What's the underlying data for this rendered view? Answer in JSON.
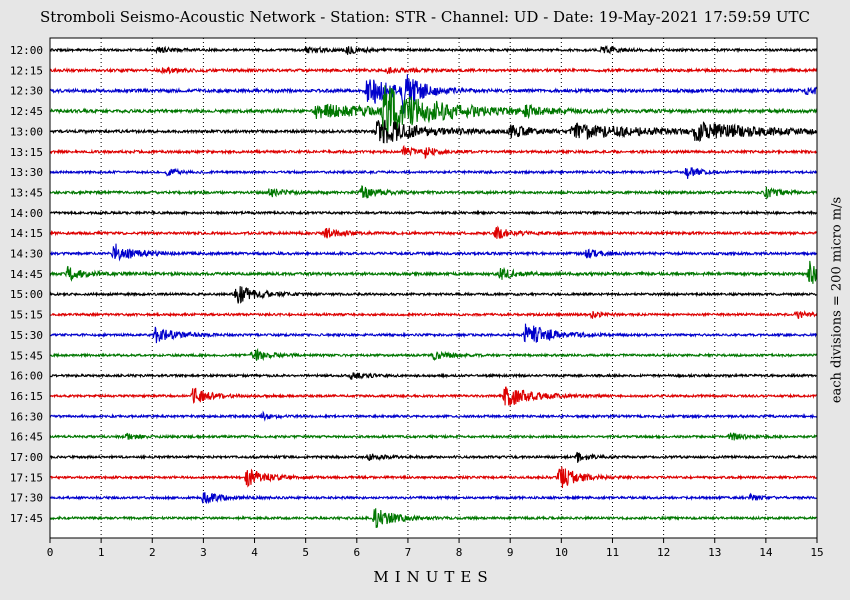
{
  "chart_data": {
    "type": "line",
    "title": "Stromboli Seismo-Acoustic Network - Station: STR - Channel: UD - Date: 19-May-2021 17:59:59 UTC",
    "xlabel": "MINUTES",
    "ylabel": "each divisions = 200 micro m/s",
    "xlim": [
      0,
      15
    ],
    "x_ticks": [
      0,
      1,
      2,
      3,
      4,
      5,
      6,
      7,
      8,
      9,
      10,
      11,
      12,
      13,
      14,
      15
    ],
    "grid": true,
    "colors": [
      "#000000",
      "#dd0000",
      "#0000cc",
      "#007700"
    ],
    "traces": [
      {
        "label": "12:00",
        "noise": 0.1,
        "events": [
          {
            "t": 2.1,
            "a": 0.25,
            "d": 0.3
          },
          {
            "t": 5.0,
            "a": 0.25,
            "d": 0.4
          },
          {
            "t": 5.8,
            "a": 0.35,
            "d": 0.25
          },
          {
            "t": 10.8,
            "a": 0.3,
            "d": 0.3
          }
        ]
      },
      {
        "label": "12:15",
        "noise": 0.12,
        "events": [
          {
            "t": 2.2,
            "a": 0.2,
            "d": 0.4
          },
          {
            "t": 6.6,
            "a": 0.25,
            "d": 0.4
          }
        ]
      },
      {
        "label": "12:30",
        "noise": 0.14,
        "events": [
          {
            "t": 6.2,
            "a": 1.6,
            "d": 0.4
          },
          {
            "t": 6.9,
            "a": 1.8,
            "d": 0.3
          },
          {
            "t": 14.8,
            "a": 0.3,
            "d": 0.5
          }
        ]
      },
      {
        "label": "12:45",
        "noise": 0.14,
        "events": [
          {
            "t": 5.2,
            "a": 0.6,
            "d": 1.5
          },
          {
            "t": 6.5,
            "a": 2.2,
            "d": 0.9
          },
          {
            "t": 9.3,
            "a": 0.4,
            "d": 0.3
          }
        ]
      },
      {
        "label": "13:00",
        "noise": 0.12,
        "events": [
          {
            "t": 6.4,
            "a": 1.2,
            "d": 0.8
          },
          {
            "t": 9.0,
            "a": 0.5,
            "d": 0.4
          },
          {
            "t": 10.2,
            "a": 0.7,
            "d": 1.3
          },
          {
            "t": 12.6,
            "a": 0.75,
            "d": 1.3
          }
        ]
      },
      {
        "label": "13:15",
        "noise": 0.11,
        "events": [
          {
            "t": 6.9,
            "a": 0.45,
            "d": 0.2
          },
          {
            "t": 7.3,
            "a": 0.5,
            "d": 0.2
          }
        ]
      },
      {
        "label": "13:30",
        "noise": 0.1,
        "events": [
          {
            "t": 2.3,
            "a": 0.3,
            "d": 0.2
          },
          {
            "t": 12.45,
            "a": 0.6,
            "d": 0.2
          }
        ]
      },
      {
        "label": "13:45",
        "noise": 0.11,
        "events": [
          {
            "t": 4.3,
            "a": 0.4,
            "d": 0.25
          },
          {
            "t": 6.1,
            "a": 0.6,
            "d": 0.3
          },
          {
            "t": 14.0,
            "a": 0.45,
            "d": 0.25
          }
        ]
      },
      {
        "label": "14:00",
        "noise": 0.1,
        "events": []
      },
      {
        "label": "14:15",
        "noise": 0.11,
        "events": [
          {
            "t": 5.4,
            "a": 0.45,
            "d": 0.3
          },
          {
            "t": 8.7,
            "a": 0.55,
            "d": 0.3
          }
        ]
      },
      {
        "label": "14:30",
        "noise": 0.11,
        "events": [
          {
            "t": 1.25,
            "a": 0.9,
            "d": 0.35
          },
          {
            "t": 10.5,
            "a": 0.4,
            "d": 0.3
          }
        ]
      },
      {
        "label": "14:45",
        "noise": 0.12,
        "events": [
          {
            "t": 0.35,
            "a": 0.6,
            "d": 0.3
          },
          {
            "t": 8.8,
            "a": 0.5,
            "d": 0.3
          },
          {
            "t": 14.85,
            "a": 1.1,
            "d": 0.35
          }
        ]
      },
      {
        "label": "15:00",
        "noise": 0.1,
        "events": [
          {
            "t": 3.65,
            "a": 0.8,
            "d": 0.4
          }
        ]
      },
      {
        "label": "15:15",
        "noise": 0.1,
        "events": [
          {
            "t": 10.6,
            "a": 0.3,
            "d": 0.2
          },
          {
            "t": 14.6,
            "a": 0.35,
            "d": 0.2
          }
        ]
      },
      {
        "label": "15:30",
        "noise": 0.1,
        "events": [
          {
            "t": 2.05,
            "a": 0.7,
            "d": 0.4
          },
          {
            "t": 9.3,
            "a": 1.2,
            "d": 0.45
          }
        ]
      },
      {
        "label": "15:45",
        "noise": 0.1,
        "events": [
          {
            "t": 3.95,
            "a": 0.6,
            "d": 0.3
          },
          {
            "t": 7.5,
            "a": 0.35,
            "d": 0.3
          }
        ]
      },
      {
        "label": "16:00",
        "noise": 0.1,
        "events": [
          {
            "t": 5.9,
            "a": 0.3,
            "d": 0.3
          }
        ]
      },
      {
        "label": "16:15",
        "noise": 0.1,
        "events": [
          {
            "t": 2.8,
            "a": 0.75,
            "d": 0.3
          },
          {
            "t": 8.9,
            "a": 1.1,
            "d": 0.45
          }
        ]
      },
      {
        "label": "16:30",
        "noise": 0.1,
        "events": [
          {
            "t": 4.15,
            "a": 0.3,
            "d": 0.2
          }
        ]
      },
      {
        "label": "16:45",
        "noise": 0.1,
        "events": [
          {
            "t": 1.5,
            "a": 0.3,
            "d": 0.2
          },
          {
            "t": 13.3,
            "a": 0.35,
            "d": 0.25
          }
        ]
      },
      {
        "label": "17:00",
        "noise": 0.1,
        "events": [
          {
            "t": 6.2,
            "a": 0.3,
            "d": 0.3
          },
          {
            "t": 10.3,
            "a": 0.5,
            "d": 0.2
          }
        ]
      },
      {
        "label": "17:15",
        "noise": 0.1,
        "events": [
          {
            "t": 3.85,
            "a": 0.8,
            "d": 0.35
          },
          {
            "t": 9.95,
            "a": 1.1,
            "d": 0.35
          }
        ]
      },
      {
        "label": "17:30",
        "noise": 0.1,
        "events": [
          {
            "t": 3.0,
            "a": 0.5,
            "d": 0.35
          },
          {
            "t": 13.7,
            "a": 0.25,
            "d": 0.2
          }
        ]
      },
      {
        "label": "17:45",
        "noise": 0.1,
        "events": [
          {
            "t": 6.35,
            "a": 1.0,
            "d": 0.35
          }
        ]
      }
    ]
  }
}
